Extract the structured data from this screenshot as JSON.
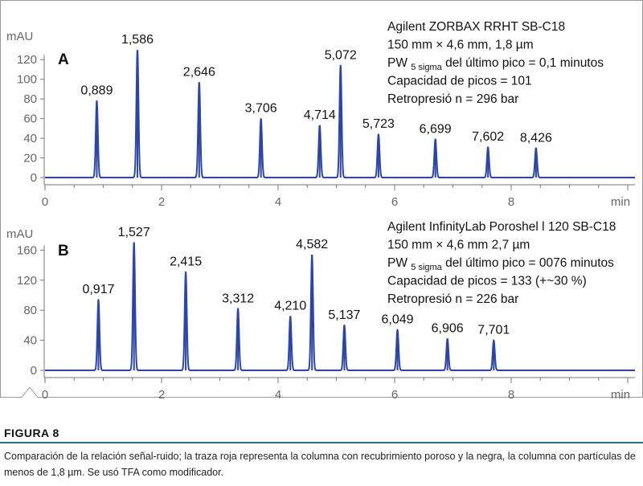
{
  "chart_data": [
    {
      "type": "line",
      "panel": "A",
      "y_unit": "mAU",
      "x_unit": "min",
      "xlim": [
        0,
        10
      ],
      "ylim": [
        -5,
        132
      ],
      "x_ticks": [
        "0",
        "2",
        "4",
        "6",
        "8"
      ],
      "y_ticks": [
        "0",
        "20",
        "40",
        "60",
        "80",
        "100",
        "120"
      ],
      "line_color": "#2b45a8",
      "peaks": [
        {
          "rt": 0.889,
          "height": 78,
          "label": "0,889"
        },
        {
          "rt": 1.586,
          "height": 130,
          "label": "1,586"
        },
        {
          "rt": 2.646,
          "height": 97,
          "label": "2,646"
        },
        {
          "rt": 3.706,
          "height": 60,
          "label": "3,706"
        },
        {
          "rt": 4.714,
          "height": 53,
          "label": "4,714"
        },
        {
          "rt": 5.072,
          "height": 114,
          "label": "5,072"
        },
        {
          "rt": 5.723,
          "height": 44,
          "label": "5,723"
        },
        {
          "rt": 6.699,
          "height": 39,
          "label": "6,699"
        },
        {
          "rt": 7.602,
          "height": 31,
          "label": "7,602"
        },
        {
          "rt": 8.426,
          "height": 30,
          "label": "8,426"
        }
      ],
      "info": {
        "line1": "Agilent ZORBAX RRHT SB-C18",
        "line2": "150 mm × 4,6 mm, 1,8 µm",
        "line3_a": "PW ",
        "line3_sub": "5 sigma",
        "line3_b": " del último pico = 0,1 minutos",
        "line4": "Capacidad de picos = 101",
        "line5": "Retropresió n = 296 bar"
      }
    },
    {
      "type": "line",
      "panel": "B",
      "y_unit": "mAU",
      "x_unit": "min",
      "xlim": [
        0,
        10
      ],
      "ylim": [
        -5,
        172
      ],
      "x_ticks": [
        "0",
        "2",
        "4",
        "6",
        "8"
      ],
      "y_ticks": [
        "0",
        "40",
        "80",
        "120",
        "160"
      ],
      "line_color": "#2b45a8",
      "peaks": [
        {
          "rt": 0.917,
          "height": 94,
          "label": "0,917"
        },
        {
          "rt": 1.527,
          "height": 170,
          "label": "1,527"
        },
        {
          "rt": 2.415,
          "height": 131,
          "label": "2,415"
        },
        {
          "rt": 3.312,
          "height": 82,
          "label": "3,312"
        },
        {
          "rt": 4.21,
          "height": 72,
          "label": "4,210"
        },
        {
          "rt": 4.582,
          "height": 154,
          "label": "4,582"
        },
        {
          "rt": 5.137,
          "height": 60,
          "label": "5,137"
        },
        {
          "rt": 6.049,
          "height": 54,
          "label": "6,049"
        },
        {
          "rt": 6.906,
          "height": 42,
          "label": "6,906"
        },
        {
          "rt": 7.701,
          "height": 40,
          "label": "7,701"
        }
      ],
      "info": {
        "line1": "Agilent InfinityLab Poroshel l 120 SB-C18",
        "line2": "150 mm × 4,6 mm 2,7 µm",
        "line3_a": "PW ",
        "line3_sub": "5 sigma",
        "line3_b": " del último pico = 0076 minutos",
        "line4": "Capacidad de picos = 133 (+~30 %)",
        "line5": "Retropresió n = 226 bar"
      }
    }
  ],
  "caption": {
    "figure_label": "FIGURA 8",
    "text": "Comparación de la relación señal-ruido; la traza roja representa la columna con recubrimiento poroso y la negra, la columna con partículas de menos de 1,8 µm. Se usó TFA como modificador."
  }
}
